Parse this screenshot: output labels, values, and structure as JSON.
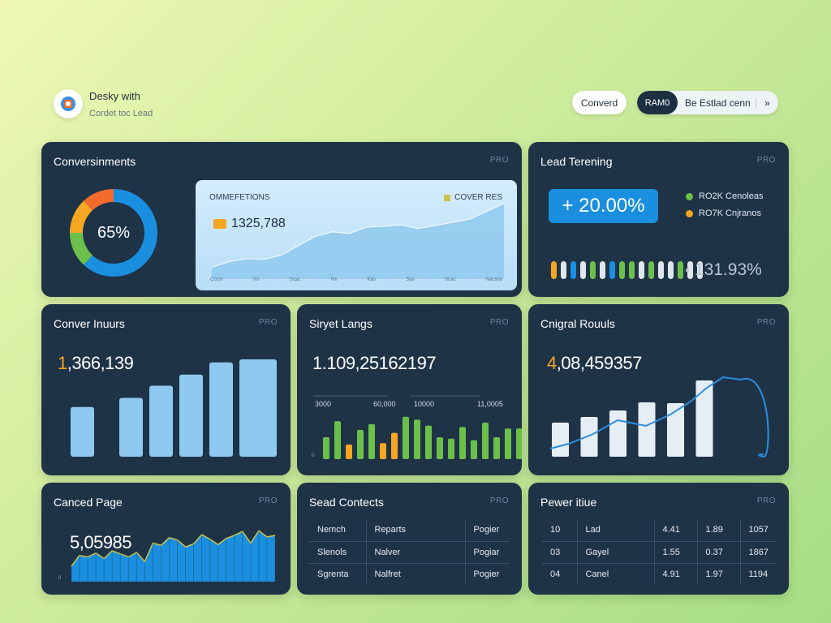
{
  "header": {
    "brand_title": "Desky with",
    "brand_subtitle": "Cordet toc Lead",
    "convert_button": "Converd",
    "segment_active": "RAM0",
    "segment_label": "Be Estlad cenn",
    "segment_more": "»"
  },
  "colors": {
    "card_bg": "#1f3347",
    "accent_blue": "#1a8fe0",
    "accent_orange": "#f5a623",
    "accent_green": "#6cc04a"
  },
  "cards": {
    "conversions": {
      "title": "Conversinments",
      "pro": "PRO",
      "donut_label": "65%",
      "inner_title": "OMMEFETIONS",
      "inner_legend": "COVER RES",
      "inner_value": "1325,788",
      "inner_axis": [
        "Cocm",
        "Ns",
        "Scac",
        "Ns",
        "Kas",
        "Sas",
        "Scac",
        "Nacsns"
      ]
    },
    "lead_tenering": {
      "title": "Lead Terening",
      "pro": "PRO",
      "pill_value": "+ 20.00%",
      "legend": [
        {
          "label": "RO2K Cenoleas",
          "color": "#6cc04a"
        },
        {
          "label": "RO7K Cnjranos",
          "color": "#f5a623"
        }
      ],
      "small_pct": "131.93%",
      "small_pct_icon": "dot-icon"
    },
    "conver_inuurs": {
      "title": "Conver Inuurs",
      "pro": "PRO",
      "value_lead": "1",
      "value_rest": ",366,139"
    },
    "siryet_langs": {
      "title": "Siryet Langs",
      "pro": "PRO",
      "value": "1.109,25162197",
      "axis_labels": [
        "3000",
        "60,000",
        "10000",
        "11,0005"
      ],
      "y_zero": "0"
    },
    "cnigral_rouuls": {
      "title": "Cnigral Rouuls",
      "pro": "PRO",
      "value_lead": "4",
      "value_rest": ",08,459357"
    },
    "canced_page": {
      "title": "Canced Page",
      "pro": "PRO",
      "value": "5,05985",
      "y_zero": "0"
    },
    "sead_contects": {
      "title": "Sead Contects",
      "pro": "PRO",
      "rows": [
        [
          "Nemch",
          "Reparts",
          "Pogier"
        ],
        [
          "Slenols",
          "Nalver",
          "Pogiar"
        ],
        [
          "Sgrenta",
          "Nalfret",
          "Pogier"
        ]
      ]
    },
    "pewer_itiue": {
      "title": "Pewer itiue",
      "pro": "PRO",
      "rows": [
        [
          "10",
          "Lad",
          "4.41",
          "1.89",
          "1057"
        ],
        [
          "03",
          "Gayel",
          "1.55",
          "0.37",
          "1867"
        ],
        [
          "04",
          "Canel",
          "4.91",
          "1.97",
          "1194"
        ]
      ]
    }
  },
  "chart_data": [
    {
      "type": "pie",
      "name": "conversions-donut",
      "values": [
        35,
        27,
        13,
        13,
        12
      ],
      "colors": [
        "#1a8fe0",
        "#1a8fe0",
        "#6cc04a",
        "#f5a623",
        "#f26b2c"
      ],
      "label": "65%"
    },
    {
      "type": "area",
      "name": "conversions-area",
      "x": [
        0,
        1,
        2,
        3,
        4,
        5,
        6,
        7,
        8,
        9,
        10,
        11,
        12,
        13,
        14,
        15,
        16,
        17
      ],
      "values": [
        15,
        22,
        26,
        25,
        30,
        42,
        54,
        60,
        58,
        66,
        67,
        69,
        64,
        68,
        72,
        76,
        86,
        96
      ],
      "ylim": [
        0,
        100
      ]
    },
    {
      "type": "bar",
      "name": "lead-pill-bars",
      "colors": [
        "#f5a623",
        "#dfe6ec",
        "#1a8fe0",
        "#dfe6ec",
        "#6cc04a",
        "#dfe6ec",
        "#1a8fe0",
        "#6cc04a",
        "#6cc04a",
        "#dfe6ec",
        "#6cc04a",
        "#dfe6ec",
        "#dfe6ec",
        "#6cc04a",
        "#dfe6ec",
        "#dfe6ec"
      ]
    },
    {
      "type": "bar",
      "name": "conver-inuurs-bars",
      "values": [
        49,
        58,
        70,
        81,
        93,
        96
      ],
      "ylim": [
        0,
        100
      ]
    },
    {
      "type": "bar",
      "name": "siryet-langs-bars",
      "values": [
        30,
        52,
        20,
        40,
        48,
        22,
        36,
        58,
        54,
        46,
        30,
        28,
        44,
        26,
        50,
        30,
        42,
        42,
        38,
        30
      ],
      "colors": [
        "#6cc04a",
        "#6cc04a",
        "#f5a623",
        "#6cc04a",
        "#6cc04a",
        "#f5a623",
        "#f5a623",
        "#6cc04a",
        "#6cc04a",
        "#6cc04a",
        "#6cc04a",
        "#6cc04a",
        "#6cc04a",
        "#6cc04a",
        "#6cc04a",
        "#6cc04a",
        "#6cc04a",
        "#6cc04a",
        "#6cc04a",
        "#6cc04a"
      ],
      "ylim": [
        0,
        100
      ]
    },
    {
      "type": "bar",
      "name": "cnigral-rouuls-bars",
      "values": [
        42,
        49,
        57,
        67,
        66,
        94
      ],
      "line": [
        10,
        16,
        28,
        45,
        38,
        52,
        68,
        85,
        98,
        95,
        6
      ],
      "ylim": [
        0,
        100
      ]
    },
    {
      "type": "area",
      "name": "canced-page-area",
      "values": [
        20,
        34,
        32,
        37,
        30,
        40,
        36,
        32,
        38,
        26,
        50,
        47,
        57,
        54,
        45,
        49,
        61,
        55,
        48,
        56,
        60,
        65,
        50,
        66,
        58,
        60
      ],
      "ylim": [
        0,
        100
      ]
    }
  ]
}
